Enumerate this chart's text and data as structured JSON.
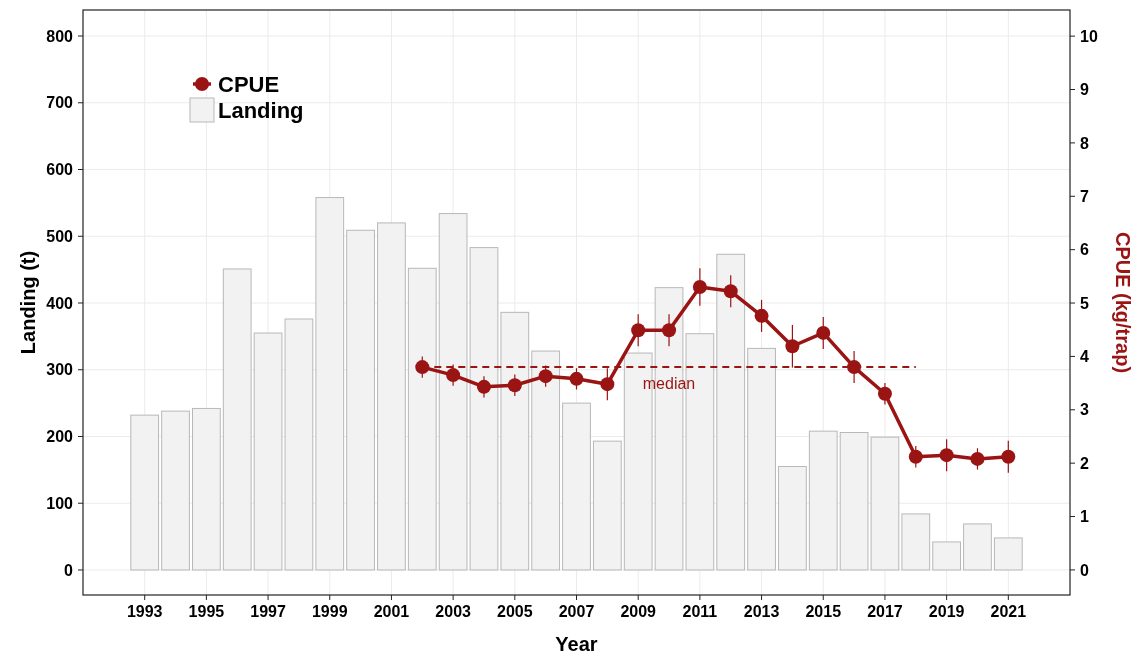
{
  "chart_data": {
    "type": "bar",
    "xlabel": "Year",
    "ylabel": "Landing (t)",
    "y2label": "CPUE (kg/trap)",
    "x": [
      1993,
      1994,
      1995,
      1996,
      1997,
      1998,
      1999,
      2000,
      2001,
      2002,
      2003,
      2004,
      2005,
      2006,
      2007,
      2008,
      2009,
      2010,
      2011,
      2012,
      2013,
      2014,
      2015,
      2016,
      2017,
      2018,
      2019,
      2020,
      2021
    ],
    "series": [
      {
        "name": "CPUE",
        "type": "line",
        "axis": "y2",
        "color": "#9b1414",
        "x": [
          2002,
          2003,
          2004,
          2005,
          2006,
          2007,
          2008,
          2009,
          2010,
          2011,
          2012,
          2013,
          2014,
          2015,
          2016,
          2017,
          2018,
          2019,
          2020,
          2021
        ],
        "values": [
          3.8,
          3.65,
          3.43,
          3.46,
          3.63,
          3.58,
          3.48,
          4.49,
          4.49,
          5.3,
          5.22,
          4.76,
          4.19,
          4.44,
          3.8,
          3.3,
          2.12,
          2.15,
          2.08,
          2.12
        ],
        "errors": [
          0.2,
          0.2,
          0.2,
          0.2,
          0.2,
          0.2,
          0.3,
          0.3,
          0.3,
          0.35,
          0.3,
          0.3,
          0.4,
          0.3,
          0.3,
          0.2,
          0.2,
          0.3,
          0.2,
          0.3
        ]
      },
      {
        "name": "Landing",
        "color": "#f2f2f2",
        "values": [
          232,
          238,
          242,
          451,
          355,
          376,
          558,
          509,
          520,
          452,
          534,
          483,
          386,
          328,
          250,
          193,
          325,
          423,
          354,
          473,
          332,
          155,
          208,
          206,
          199,
          84,
          42,
          69,
          48
        ]
      }
    ],
    "xlim": [
      1991,
      2023
    ],
    "xticks": [
      1993,
      1995,
      1997,
      1999,
      2001,
      2003,
      2005,
      2007,
      2009,
      2011,
      2013,
      2015,
      2017,
      2019,
      2021
    ],
    "ylim": [
      -37.5,
      839
    ],
    "yticks": [
      0,
      100,
      200,
      300,
      400,
      500,
      600,
      700,
      800
    ],
    "y2lim": [
      -0.47,
      10.49
    ],
    "y2ticks": [
      0,
      1,
      2,
      3,
      4,
      5,
      6,
      7,
      8,
      9,
      10
    ],
    "ref_lines": [
      {
        "axis": "y2",
        "value": 3.8,
        "label": "median",
        "color": "#9b1414",
        "line_style": "dashed"
      }
    ],
    "grid": true,
    "legend": "top left",
    "marker": "circle"
  }
}
